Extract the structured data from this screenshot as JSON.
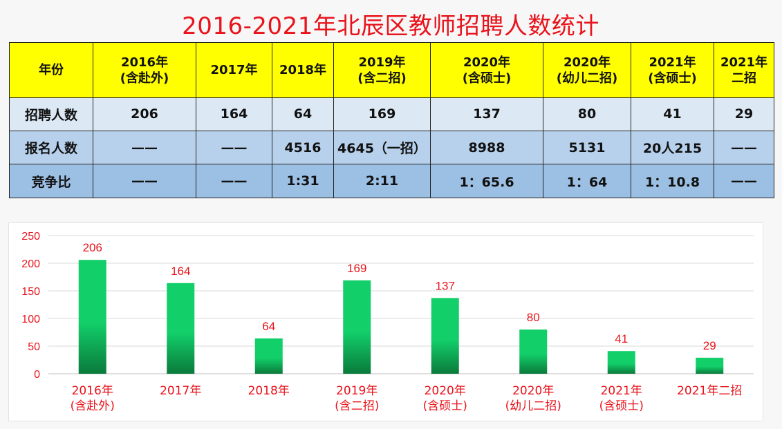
{
  "title": "2016-2021年北辰区教师招聘人数统计",
  "table": {
    "headers": [
      [
        "年份"
      ],
      [
        "2016年",
        "(含赴外)"
      ],
      [
        "2017年"
      ],
      [
        "2018年"
      ],
      [
        "2019年",
        "(含二招)"
      ],
      [
        "2020年",
        "(含硕士)"
      ],
      [
        "2020年",
        "(幼儿二招)"
      ],
      [
        "2021年",
        "(含硕士)"
      ],
      [
        "2021年",
        "二招"
      ]
    ],
    "rows": [
      {
        "label": "招聘人数",
        "cells": [
          "206",
          "164",
          "64",
          "169",
          "137",
          "80",
          "41",
          "29"
        ]
      },
      {
        "label": "报名人数",
        "cells": [
          "——",
          "——",
          "4516",
          "4645（一招）",
          "8988",
          "5131",
          "20人215",
          "——"
        ]
      },
      {
        "label": "竞争比",
        "cells": [
          "——",
          "——",
          "1:31",
          "2:11",
          "1：65.6",
          "1：64",
          "1：10.8",
          "——"
        ]
      }
    ]
  },
  "chart_data": {
    "type": "bar",
    "categories": [
      [
        "2016年",
        "(含赴外)"
      ],
      [
        "2017年"
      ],
      [
        "2018年"
      ],
      [
        "2019年",
        "(含二招)"
      ],
      [
        "2020年",
        "(含硕士)"
      ],
      [
        "2020年",
        "(幼儿二招)"
      ],
      [
        "2021年",
        "(含硕士)"
      ],
      [
        "2021年二招"
      ]
    ],
    "values": [
      206,
      164,
      64,
      169,
      137,
      80,
      41,
      29
    ],
    "ylim": [
      0,
      250
    ],
    "yticks": [
      0,
      50,
      100,
      150,
      200,
      250
    ],
    "grid": true,
    "colors": {
      "bar_top": "#12cf6a",
      "bar_bottom": "#0a7a3b",
      "label": "#e8141c",
      "tick": "#e8141c",
      "grid": "#d9d9d9"
    }
  }
}
